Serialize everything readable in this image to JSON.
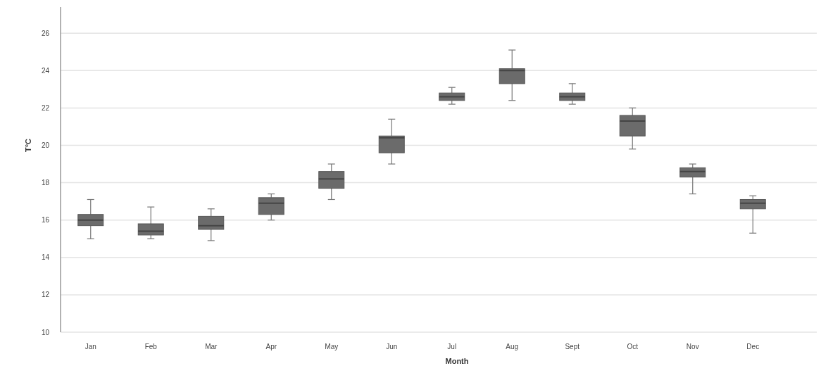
{
  "chart_data": {
    "type": "box",
    "xlabel": "Month",
    "ylabel": "T°C",
    "categories": [
      "Jan",
      "Feb",
      "Mar",
      "Apr",
      "May",
      "Jun",
      "Jul",
      "Aug",
      "Sept",
      "Oct",
      "Nov",
      "Dec"
    ],
    "boxes": [
      {
        "low": 15.0,
        "q1": 15.7,
        "median": 16.0,
        "q3": 16.3,
        "high": 17.1
      },
      {
        "low": 15.0,
        "q1": 15.2,
        "median": 15.4,
        "q3": 15.8,
        "high": 16.7
      },
      {
        "low": 14.9,
        "q1": 15.5,
        "median": 15.7,
        "q3": 16.2,
        "high": 16.6
      },
      {
        "low": 16.0,
        "q1": 16.3,
        "median": 16.9,
        "q3": 17.2,
        "high": 17.4
      },
      {
        "low": 17.1,
        "q1": 17.7,
        "median": 18.2,
        "q3": 18.6,
        "high": 19.0
      },
      {
        "low": 19.0,
        "q1": 19.6,
        "median": 20.4,
        "q3": 20.5,
        "high": 21.4
      },
      {
        "low": 22.2,
        "q1": 22.4,
        "median": 22.6,
        "q3": 22.8,
        "high": 23.1
      },
      {
        "low": 22.4,
        "q1": 23.3,
        "median": 24.0,
        "q3": 24.1,
        "high": 25.1
      },
      {
        "low": 22.2,
        "q1": 22.4,
        "median": 22.6,
        "q3": 22.8,
        "high": 23.3
      },
      {
        "low": 19.8,
        "q1": 20.5,
        "median": 21.3,
        "q3": 21.6,
        "high": 22.0
      },
      {
        "low": 17.4,
        "q1": 18.3,
        "median": 18.6,
        "q3": 18.8,
        "high": 19.0
      },
      {
        "low": 15.3,
        "q1": 16.6,
        "median": 16.9,
        "q3": 17.1,
        "high": 17.3
      }
    ],
    "color": "#6b6b6b",
    "ylim": [
      10,
      27.4
    ],
    "yticks": [
      10,
      12,
      14,
      16,
      18,
      20,
      22,
      24,
      26
    ],
    "grid": "y"
  }
}
